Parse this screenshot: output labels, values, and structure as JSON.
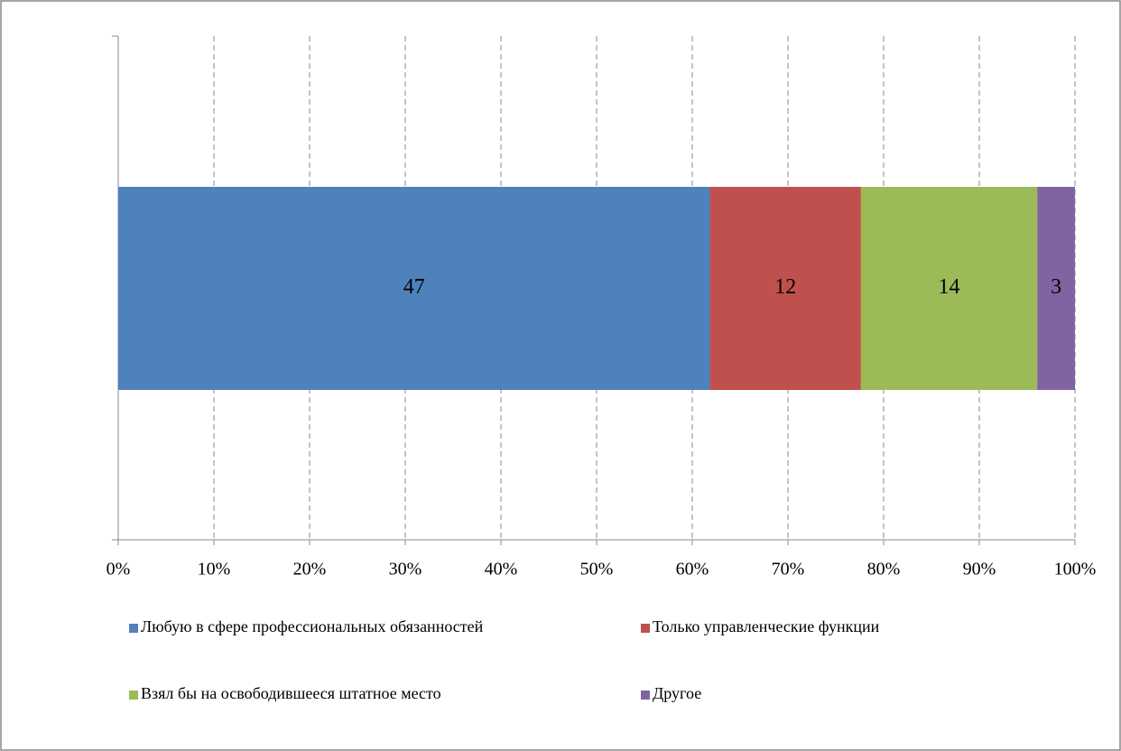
{
  "chart_data": {
    "type": "bar",
    "orientation": "horizontal",
    "stacking": "percent",
    "series": [
      {
        "name": "Любую в сфере профессиональных обязанностей",
        "color": "#4f81bd",
        "values": [
          47
        ]
      },
      {
        "name": "Только управленческие функции",
        "color": "#c0504d",
        "values": [
          12
        ]
      },
      {
        "name": "Взял бы на освободившееся штатное место",
        "color": "#9bbb59",
        "values": [
          14
        ]
      },
      {
        "name": "Другое",
        "color": "#8064a2",
        "values": [
          3
        ]
      }
    ],
    "xlim": [
      0,
      100
    ],
    "xticks": [
      {
        "value": 0,
        "label": "0%"
      },
      {
        "value": 10,
        "label": "10%"
      },
      {
        "value": 20,
        "label": "20%"
      },
      {
        "value": 30,
        "label": "30%"
      },
      {
        "value": 40,
        "label": "40%"
      },
      {
        "value": 50,
        "label": "50%"
      },
      {
        "value": 60,
        "label": "60%"
      },
      {
        "value": 70,
        "label": "70%"
      },
      {
        "value": 80,
        "label": "80%"
      },
      {
        "value": 90,
        "label": "90%"
      },
      {
        "value": 100,
        "label": "100%"
      }
    ],
    "grid": true,
    "legend": "bottom"
  }
}
